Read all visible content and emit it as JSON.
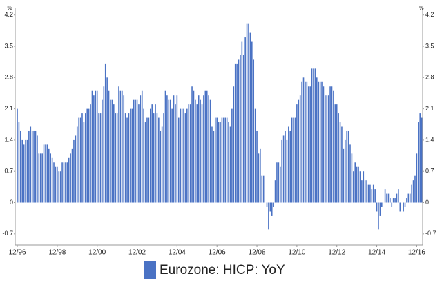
{
  "chart_data": {
    "type": "bar",
    "ylabel": "%",
    "y2label": "%",
    "ylim": [
      -0.95,
      4.35
    ],
    "yticks": [
      -0.7,
      0.0,
      0.7,
      1.4,
      2.1,
      2.8,
      3.5,
      4.2
    ],
    "y2lim": [
      -0.95,
      4.35
    ],
    "y2ticks": [
      -0.7,
      0.0,
      0.7,
      1.4,
      2.1,
      2.8,
      3.5,
      4.2
    ],
    "categories": [
      "12/96",
      null,
      null,
      null,
      null,
      null,
      null,
      null,
      null,
      null,
      null,
      null,
      null,
      null,
      null,
      null,
      null,
      null,
      null,
      null,
      null,
      null,
      null,
      null,
      "12/98",
      null,
      null,
      null,
      null,
      null,
      null,
      null,
      null,
      null,
      null,
      null,
      null,
      null,
      null,
      null,
      null,
      null,
      null,
      null,
      null,
      null,
      null,
      null,
      "12/00",
      null,
      null,
      null,
      null,
      null,
      null,
      null,
      null,
      null,
      null,
      null,
      null,
      null,
      null,
      null,
      null,
      null,
      null,
      null,
      null,
      null,
      null,
      null,
      "12/02",
      null,
      null,
      null,
      null,
      null,
      null,
      null,
      null,
      null,
      null,
      null,
      null,
      null,
      null,
      null,
      null,
      null,
      null,
      null,
      null,
      null,
      null,
      null,
      "12/04",
      null,
      null,
      null,
      null,
      null,
      null,
      null,
      null,
      null,
      null,
      null,
      null,
      null,
      null,
      null,
      null,
      null,
      null,
      null,
      null,
      null,
      null,
      null,
      "12/06",
      null,
      null,
      null,
      null,
      null,
      null,
      null,
      null,
      null,
      null,
      null,
      null,
      null,
      null,
      null,
      null,
      null,
      null,
      null,
      null,
      null,
      null,
      null,
      "12/08",
      null,
      null,
      null,
      null,
      null,
      null,
      null,
      null,
      null,
      null,
      null,
      null,
      null,
      null,
      null,
      null,
      null,
      null,
      null,
      null,
      null,
      null,
      null,
      "12/10",
      null,
      null,
      null,
      null,
      null,
      null,
      null,
      null,
      null,
      null,
      null,
      null,
      null,
      null,
      null,
      null,
      null,
      null,
      null,
      null,
      null,
      null,
      null,
      "12/12",
      null,
      null,
      null,
      null,
      null,
      null,
      null,
      null,
      null,
      null,
      null,
      null,
      null,
      null,
      null,
      null,
      null,
      null,
      null,
      null,
      null,
      null,
      null,
      "12/14",
      null,
      null,
      null,
      null,
      null,
      null,
      null,
      null,
      null,
      null,
      null,
      null,
      null,
      null,
      null,
      null,
      null,
      null,
      null,
      null,
      null,
      null,
      null,
      "12/16",
      null,
      null,
      null
    ],
    "series": [
      {
        "name": "Eurozone: HICP: YoY",
        "color": "#4a72c4",
        "values": [
          2.1,
          1.8,
          1.6,
          1.4,
          1.3,
          1.4,
          1.4,
          1.6,
          1.7,
          1.6,
          1.6,
          1.6,
          1.5,
          1.1,
          1.1,
          1.1,
          1.3,
          1.3,
          1.3,
          1.2,
          1.1,
          1.0,
          0.9,
          0.8,
          0.8,
          0.7,
          0.7,
          0.9,
          0.9,
          0.9,
          0.9,
          1.0,
          1.1,
          1.2,
          1.4,
          1.5,
          1.7,
          1.9,
          1.9,
          2.0,
          1.8,
          2.0,
          2.1,
          2.1,
          2.2,
          2.5,
          2.4,
          2.5,
          2.5,
          2.0,
          2.0,
          2.3,
          2.6,
          3.1,
          2.8,
          2.5,
          2.3,
          2.3,
          2.2,
          2.0,
          2.0,
          2.6,
          2.5,
          2.5,
          2.4,
          2.0,
          1.9,
          2.0,
          2.1,
          2.1,
          2.3,
          2.3,
          2.3,
          2.2,
          2.4,
          2.5,
          2.1,
          1.8,
          1.9,
          1.9,
          2.1,
          2.2,
          2.0,
          2.2,
          2.0,
          1.9,
          1.6,
          1.7,
          2.0,
          2.5,
          2.4,
          2.3,
          2.3,
          2.1,
          2.4,
          2.2,
          2.4,
          1.9,
          2.1,
          2.1,
          2.1,
          2.0,
          2.1,
          2.2,
          2.2,
          2.6,
          2.5,
          2.3,
          2.2,
          2.4,
          2.3,
          2.2,
          2.4,
          2.5,
          2.5,
          2.4,
          2.3,
          1.7,
          1.6,
          1.9,
          1.9,
          1.8,
          1.8,
          1.9,
          1.9,
          1.9,
          1.9,
          1.8,
          1.7,
          2.1,
          2.6,
          3.1,
          3.1,
          3.2,
          3.3,
          3.6,
          3.3,
          3.7,
          4.0,
          4.0,
          3.8,
          3.6,
          3.2,
          2.1,
          1.6,
          1.1,
          1.2,
          0.6,
          0.6,
          0.0,
          -0.1,
          -0.6,
          -0.2,
          -0.3,
          -0.1,
          0.5,
          0.9,
          0.9,
          0.8,
          1.4,
          1.5,
          1.6,
          1.4,
          1.7,
          1.6,
          1.9,
          1.9,
          1.9,
          2.2,
          2.3,
          2.4,
          2.7,
          2.8,
          2.7,
          2.7,
          2.6,
          2.6,
          3.0,
          3.0,
          3.0,
          2.8,
          2.7,
          2.7,
          2.7,
          2.6,
          2.4,
          2.4,
          2.4,
          2.6,
          2.6,
          2.5,
          2.2,
          2.2,
          2.0,
          1.8,
          1.7,
          1.2,
          1.4,
          1.6,
          1.6,
          1.3,
          1.1,
          0.7,
          0.9,
          0.8,
          0.8,
          0.7,
          0.5,
          0.7,
          0.5,
          0.5,
          0.4,
          0.4,
          0.3,
          0.4,
          0.3,
          -0.2,
          -0.6,
          -0.3,
          -0.1,
          0.0,
          0.3,
          0.2,
          0.2,
          0.1,
          -0.1,
          0.1,
          0.1,
          0.2,
          0.3,
          -0.2,
          0.0,
          -0.2,
          -0.1,
          0.1,
          0.2,
          0.2,
          0.4,
          0.5,
          0.6,
          1.1,
          1.8,
          2.0,
          1.9
        ]
      }
    ]
  }
}
